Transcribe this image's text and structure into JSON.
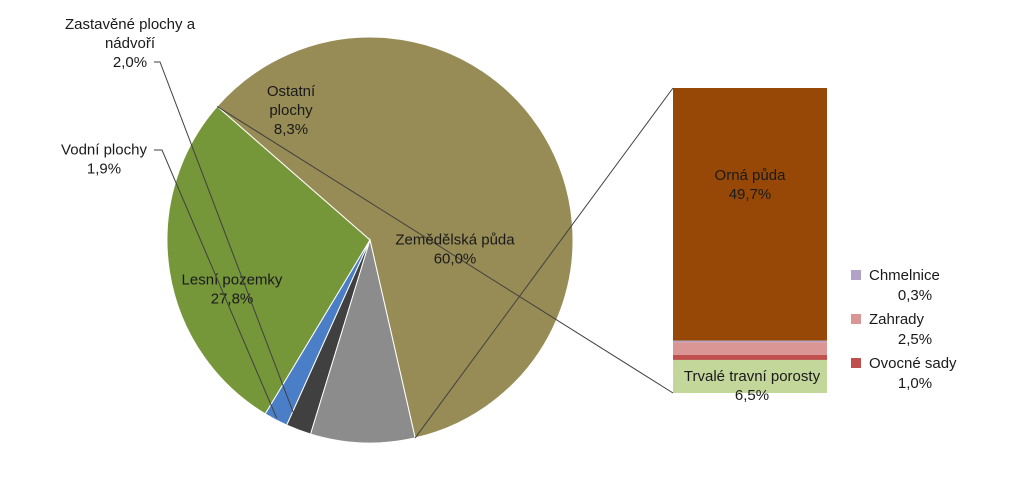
{
  "chart_data": {
    "type": "pie",
    "title": "",
    "slices": [
      {
        "name": "Zemědělská půda",
        "value": 60.0,
        "value_label": "60,0%",
        "color": "#978c55"
      },
      {
        "name": "Lesní pozemky",
        "value": 27.8,
        "value_label": "27,8%",
        "color": "#76963a"
      },
      {
        "name": "Vodní plochy",
        "value": 1.9,
        "value_label": "1,9%",
        "color": "#4a7fc7"
      },
      {
        "name": "Zastavěné plochy a nádvoří",
        "value": 2.0,
        "value_label": "2,0%",
        "color": "#404040"
      },
      {
        "name": "Ostatní plochy",
        "value": 8.3,
        "value_label": "8,3%",
        "color": "#8c8c8c"
      }
    ],
    "breakdown": {
      "of": "Zemědělská půda",
      "type": "stacked-bar",
      "segments": [
        {
          "name": "Orná půda",
          "value": 49.7,
          "value_label": "49,7%",
          "color": "#974806"
        },
        {
          "name": "Chmelnice",
          "value": 0.3,
          "value_label": "0,3%",
          "color": "#b3a2c7"
        },
        {
          "name": "Zahrady",
          "value": 2.5,
          "value_label": "2,5%",
          "color": "#d99694"
        },
        {
          "name": "Ovocné sady",
          "value": 1.0,
          "value_label": "1,0%",
          "color": "#c0504d"
        },
        {
          "name": "Trvalé travní porosty",
          "value": 6.5,
          "value_label": "6,5%",
          "color": "#c4d79b"
        }
      ]
    },
    "legend": [
      {
        "name": "Chmelnice",
        "value_label": "0,3%",
        "color": "#b3a2c7"
      },
      {
        "name": "Zahrady",
        "value_label": "2,5%",
        "color": "#d99694"
      },
      {
        "name": "Ovocné sady",
        "value_label": "1,0%",
        "color": "#c0504d"
      }
    ],
    "legend_placement": "right"
  }
}
